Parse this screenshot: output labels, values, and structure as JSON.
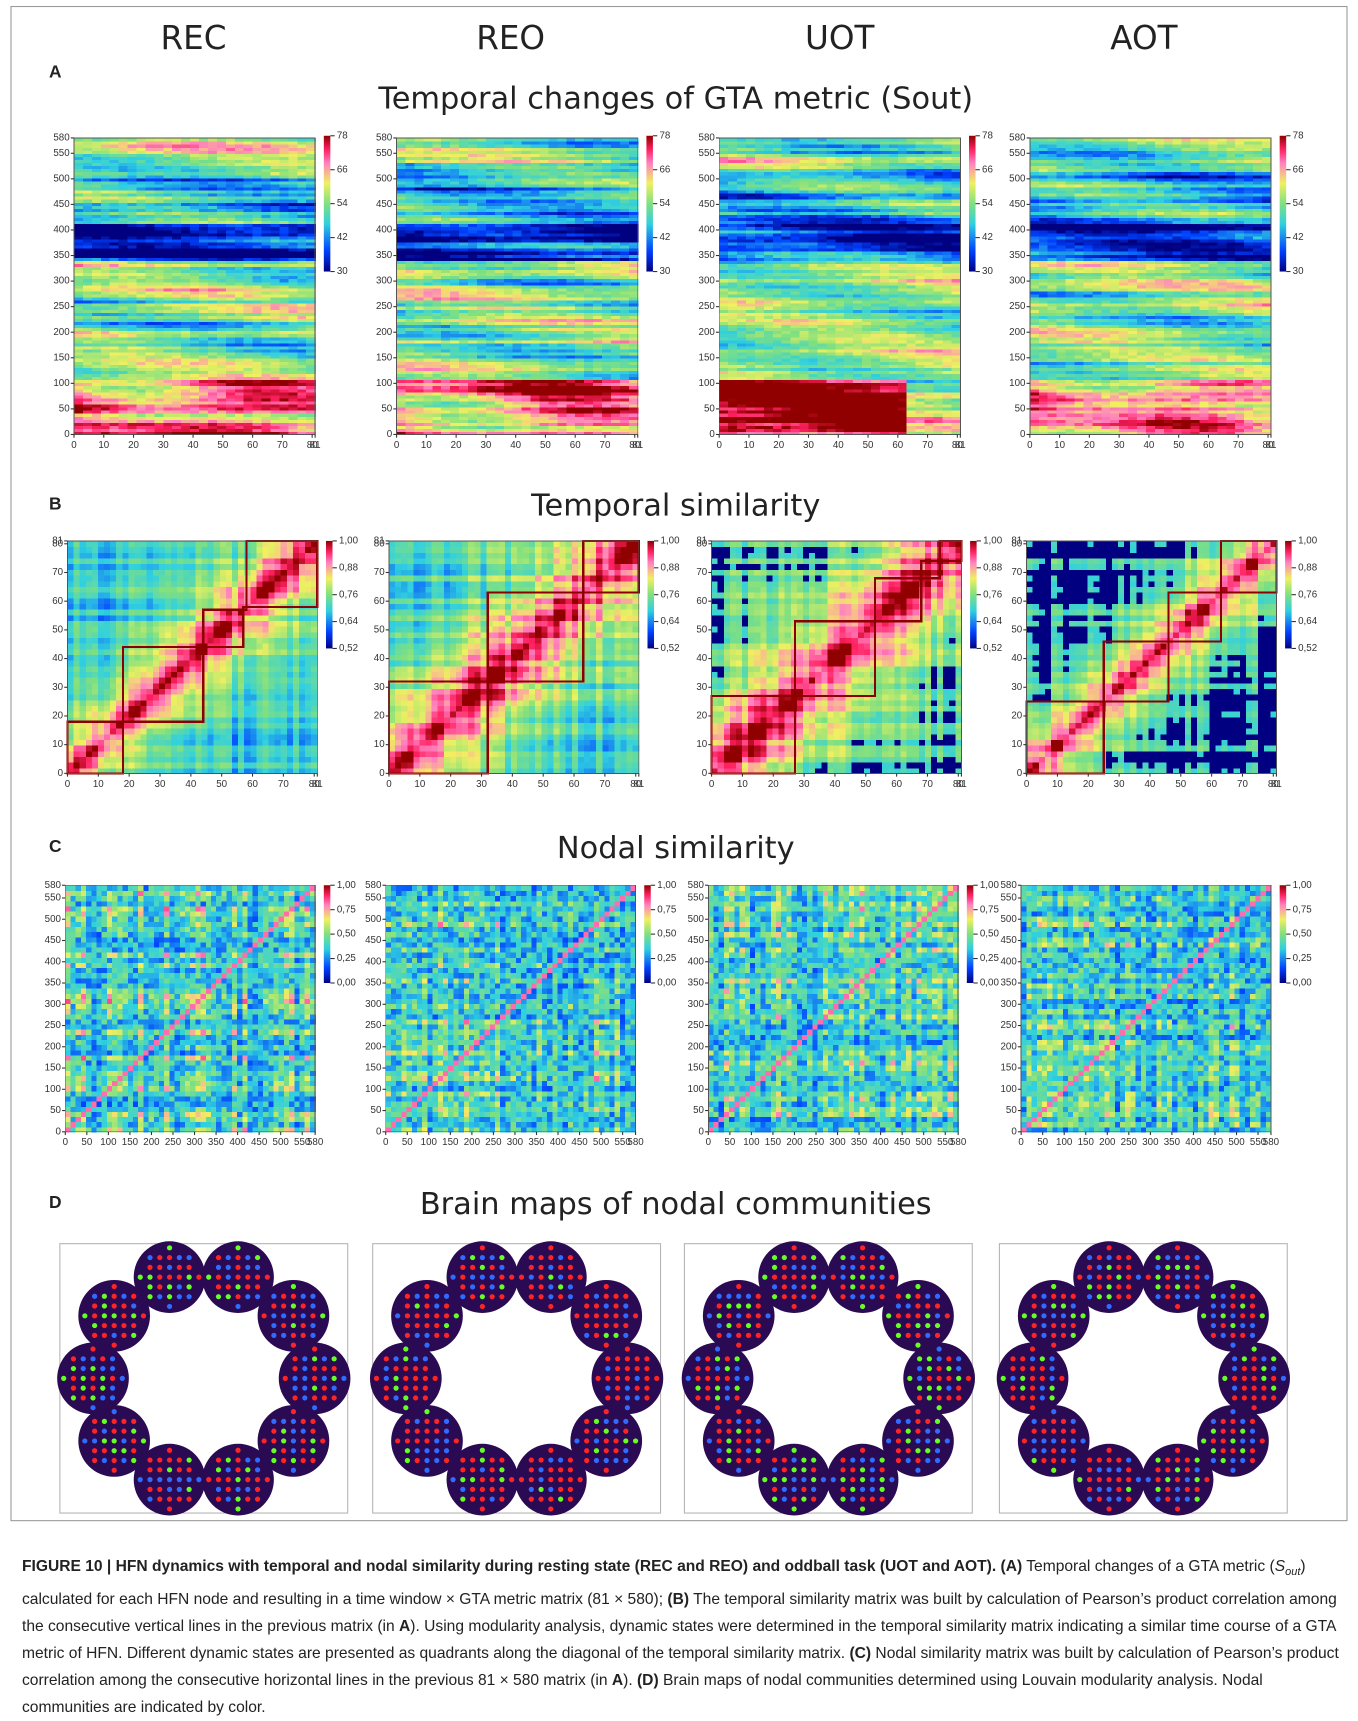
{
  "columns": [
    "REC",
    "REO",
    "UOT",
    "AOT"
  ],
  "sections": [
    {
      "label": "A",
      "title": "Temporal changes of GTA metric (Sout)",
      "yticks": [
        0,
        50,
        100,
        150,
        200,
        250,
        300,
        350,
        400,
        450,
        500,
        550,
        580
      ],
      "xticks": [
        0,
        10,
        20,
        30,
        40,
        50,
        60,
        70,
        80,
        81
      ],
      "colorbar_ticks": [
        30,
        42,
        54,
        66,
        78
      ]
    },
    {
      "label": "B",
      "title": "Temporal similarity",
      "yticks": [
        0,
        10,
        20,
        30,
        40,
        50,
        60,
        70,
        80,
        81
      ],
      "xticks": [
        0,
        10,
        20,
        30,
        40,
        50,
        60,
        70,
        80,
        81
      ],
      "colorbar_ticks": [
        {
          "value": 0.52,
          "label": "0,52"
        },
        {
          "value": 0.64,
          "label": "0,64"
        },
        {
          "value": 0.76,
          "label": "0,76"
        },
        {
          "value": 0.88,
          "label": "0,88"
        },
        {
          "value": 1.0,
          "label": "1,00"
        }
      ]
    },
    {
      "label": "C",
      "title": "Nodal similarity",
      "yticks": [
        0,
        50,
        100,
        150,
        200,
        250,
        300,
        350,
        400,
        450,
        500,
        550,
        580
      ],
      "xticks": [
        0,
        50,
        100,
        150,
        200,
        250,
        300,
        350,
        400,
        450,
        500,
        550,
        580
      ],
      "colorbar_ticks": [
        {
          "value": 0,
          "label": "0,00"
        },
        {
          "value": 0.25,
          "label": "0,25"
        },
        {
          "value": 0.5,
          "label": "0,50"
        },
        {
          "value": 0.75,
          "label": "0,75"
        },
        {
          "value": 1.0,
          "label": "1,00"
        }
      ]
    },
    {
      "label": "D",
      "title": "Brain maps of nodal communities"
    }
  ],
  "caption": [
    {
      "text": "FIGURE 10 | HFN dynamics with temporal and nodal similarity during resting state (REC and REO) and oddball task (UOT and AOT).",
      "style": "bold"
    },
    {
      "text": " ",
      "style": "normal"
    },
    {
      "text": "(A)",
      "style": "bold"
    },
    {
      "text": " Temporal changes of a GTA metric (",
      "style": "normal"
    },
    {
      "text": "S",
      "style": "italic"
    },
    {
      "text": "out",
      "style": "subscript"
    },
    {
      "text": ") calculated for each HFN node and resulting in a time window × GTA metric matrix (81 × 580); ",
      "style": "normal"
    },
    {
      "text": "(B)",
      "style": "bold"
    },
    {
      "text": " The temporal similarity matrix was built by calculation of Pearson’s product correlation among the consecutive vertical lines in the previous matrix (in ",
      "style": "normal"
    },
    {
      "text": "A",
      "style": "bold"
    },
    {
      "text": "). Using modularity analysis, dynamic states were determined in the temporal similarity matrix indicating a similar time course of a GTA metric of HFN. Different dynamic states are presented as quadrants along the diagonal of the temporal similarity matrix. ",
      "style": "normal"
    },
    {
      "text": "(C)",
      "style": "bold"
    },
    {
      "text": " Nodal similarity matrix was built by calculation of Pearson’s product correlation among the consecutive horizontal lines in the previous 81 × 580 matrix (in ",
      "style": "normal"
    },
    {
      "text": "A",
      "style": "bold"
    },
    {
      "text": "). ",
      "style": "normal"
    },
    {
      "text": "(D)",
      "style": "bold"
    },
    {
      "text": " Brain maps of nodal communities determined using Louvain modularity analysis. Nodal communities are indicated by color.",
      "style": "normal"
    }
  ]
}
